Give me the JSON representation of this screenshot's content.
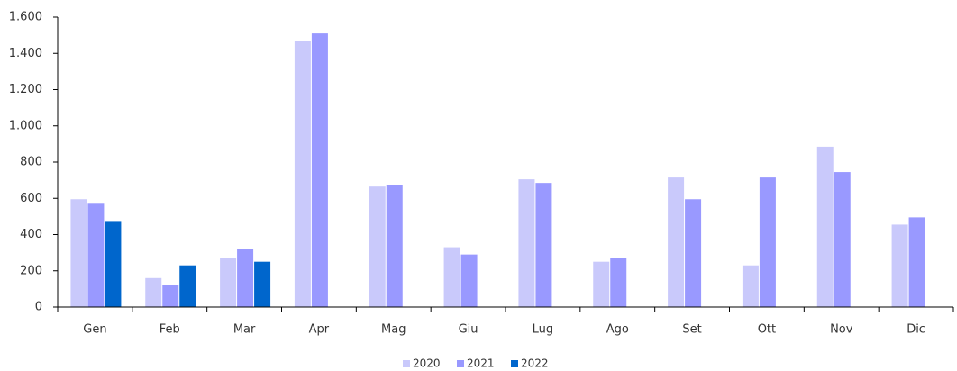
{
  "chart_data": {
    "type": "bar",
    "categories": [
      "Gen",
      "Feb",
      "Mar",
      "Apr",
      "Mag",
      "Giu",
      "Lug",
      "Ago",
      "Set",
      "Ott",
      "Nov",
      "Dic"
    ],
    "series": [
      {
        "name": "2020",
        "color": "#c9c9fb",
        "values": [
          595,
          160,
          270,
          1470,
          665,
          330,
          705,
          250,
          715,
          230,
          885,
          455
        ]
      },
      {
        "name": "2021",
        "color": "#9999ff",
        "values": [
          575,
          120,
          320,
          1510,
          675,
          290,
          685,
          270,
          595,
          715,
          745,
          495
        ]
      },
      {
        "name": "2022",
        "color": "#0066cc",
        "values": [
          475,
          230,
          250,
          null,
          null,
          null,
          null,
          null,
          null,
          null,
          null,
          null
        ]
      }
    ],
    "ylim": [
      0,
      1600
    ],
    "yticks": [
      0,
      200,
      400,
      600,
      800,
      {
        "value": 1000,
        "label": "1.000"
      },
      {
        "value": 1200,
        "label": "1.200"
      },
      {
        "value": 1400,
        "label": "1.400"
      },
      {
        "value": 1600,
        "label": "1.600"
      }
    ],
    "grid": false,
    "legend": "bottom"
  }
}
